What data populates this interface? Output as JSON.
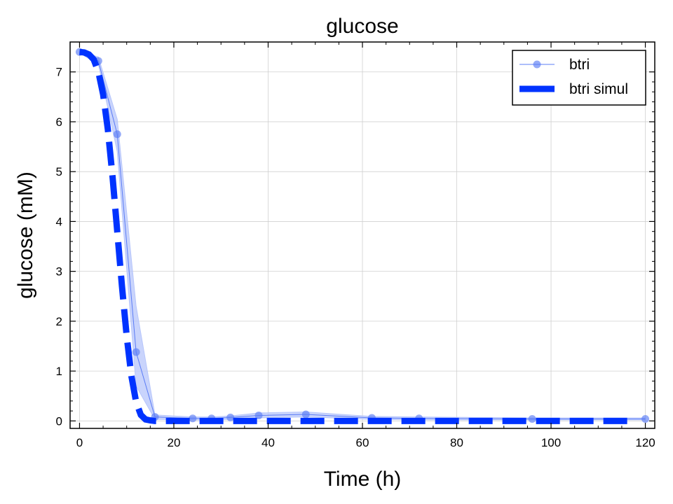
{
  "chart_data": {
    "type": "line",
    "title": "glucose",
    "xlabel": "Time (h)",
    "ylabel": "glucose (mM)",
    "xlim": [
      -2,
      122
    ],
    "ylim": [
      -0.15,
      7.6
    ],
    "xticks": [
      0,
      20,
      40,
      60,
      80,
      100,
      120
    ],
    "yticks": [
      0,
      1,
      2,
      3,
      4,
      5,
      6,
      7
    ],
    "grid": true,
    "legend_position": "top-right",
    "colors": {
      "measured": "#5b7cf5",
      "band": "#b7c6fb",
      "simulated": "#0033ff"
    },
    "series": [
      {
        "name": "btri",
        "style": "line-markers",
        "x": [
          0,
          4,
          8,
          12,
          16,
          24,
          28,
          32,
          38,
          48,
          62,
          72,
          96,
          120
        ],
        "y": [
          7.4,
          7.22,
          5.75,
          1.38,
          0.08,
          0.05,
          0.05,
          0.07,
          0.11,
          0.13,
          0.06,
          0.05,
          0.04,
          0.04
        ],
        "y_lower": [
          7.38,
          7.15,
          5.4,
          0.7,
          0.03,
          0.02,
          0.02,
          0.03,
          0.06,
          0.08,
          0.03,
          0.02,
          0.02,
          0.02
        ],
        "y_upper": [
          7.42,
          7.3,
          6.05,
          2.3,
          0.12,
          0.08,
          0.08,
          0.1,
          0.16,
          0.18,
          0.09,
          0.08,
          0.06,
          0.06
        ]
      },
      {
        "name": "btri simul",
        "style": "dashed",
        "x": [
          0,
          1,
          2,
          3,
          4,
          5,
          6,
          7,
          8,
          9,
          10,
          11,
          12,
          13,
          14,
          15,
          16,
          18,
          20,
          30,
          40,
          60,
          80,
          100,
          118
        ],
        "y": [
          7.4,
          7.39,
          7.35,
          7.25,
          7.0,
          6.55,
          5.85,
          4.9,
          3.8,
          2.7,
          1.7,
          0.9,
          0.38,
          0.12,
          0.03,
          0.01,
          0.0,
          0.0,
          0.0,
          0.0,
          0.0,
          0.0,
          0.0,
          0.0,
          0.0
        ]
      }
    ]
  }
}
